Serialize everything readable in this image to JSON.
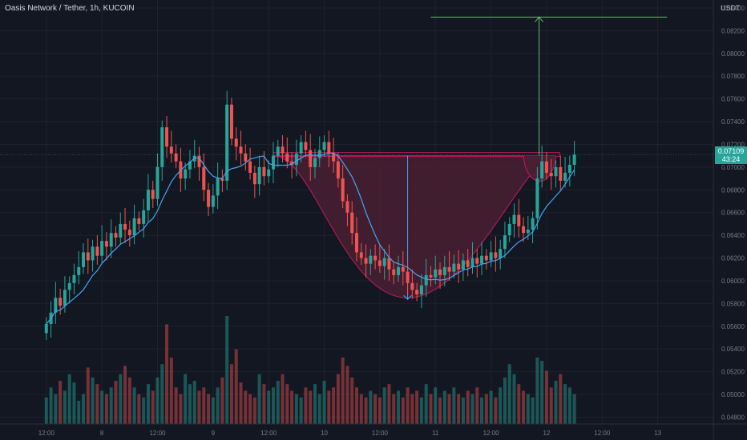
{
  "header": {
    "title": "Oasis Network / Tether, 1h, KUCOIN",
    "currency": "USDT"
  },
  "price_tag": {
    "price": "0.07109",
    "countdown": "43:24"
  },
  "colors": {
    "background": "#131722",
    "up": "#26a69a",
    "down": "#ef5350",
    "ma_line": "#42a5f5",
    "pattern_fill": "#4a1f33",
    "pattern_stroke": "#c2185b",
    "target_line": "#66bb6a",
    "grid": "#1e222d",
    "axis_text": "#787b86"
  },
  "chart_data": {
    "type": "candlestick",
    "symbol": "Oasis Network / Tether",
    "interval": "1h",
    "exchange": "KUCOIN",
    "y_axis": {
      "unit": "USDT",
      "range": [
        0.0474,
        0.0847
      ],
      "ticks": [
        "0.08400",
        "0.08200",
        "0.08000",
        "0.07800",
        "0.07600",
        "0.07400",
        "0.07200",
        "0.07000",
        "0.06800",
        "0.06600",
        "0.06400",
        "0.06200",
        "0.06000",
        "0.05800",
        "0.05600",
        "0.05400",
        "0.05200",
        "0.05000",
        "0.04800"
      ]
    },
    "x_axis": {
      "range_hours": [
        -10,
        144
      ],
      "ticks": [
        {
          "hour": 0,
          "label": "12:00"
        },
        {
          "hour": 12,
          "label": "8"
        },
        {
          "hour": 24,
          "label": "12:00"
        },
        {
          "hour": 36,
          "label": "9"
        },
        {
          "hour": 48,
          "label": "12:00"
        },
        {
          "hour": 60,
          "label": "10"
        },
        {
          "hour": 72,
          "label": "12:00"
        },
        {
          "hour": 84,
          "label": "11"
        },
        {
          "hour": 96,
          "label": "12:00"
        },
        {
          "hour": 108,
          "label": "12"
        },
        {
          "hour": 120,
          "label": "12:00"
        },
        {
          "hour": 132,
          "label": "13"
        }
      ]
    },
    "candle_closes": [
      0.0562,
      0.0572,
      0.0585,
      0.0578,
      0.0592,
      0.0598,
      0.0605,
      0.0612,
      0.0625,
      0.0618,
      0.063,
      0.0622,
      0.0635,
      0.063,
      0.0642,
      0.0638,
      0.065,
      0.0645,
      0.064,
      0.0655,
      0.065,
      0.0662,
      0.068,
      0.0672,
      0.07,
      0.0735,
      0.0718,
      0.0712,
      0.0705,
      0.069,
      0.0698,
      0.0705,
      0.071,
      0.07,
      0.068,
      0.0665,
      0.0675,
      0.069,
      0.0688,
      0.0755,
      0.0725,
      0.0718,
      0.0712,
      0.0705,
      0.0695,
      0.0685,
      0.07,
      0.0692,
      0.0698,
      0.071,
      0.0718,
      0.0712,
      0.0705,
      0.0702,
      0.0712,
      0.0722,
      0.0715,
      0.07,
      0.0708,
      0.0715,
      0.0722,
      0.0712,
      0.0705,
      0.069,
      0.067,
      0.066,
      0.0642,
      0.0625,
      0.062,
      0.0615,
      0.0622,
      0.0618,
      0.0613,
      0.062,
      0.061,
      0.0605,
      0.0612,
      0.0608,
      0.0598,
      0.0592,
      0.0588,
      0.0596,
      0.0605,
      0.0603,
      0.061,
      0.0605,
      0.0612,
      0.0608,
      0.0615,
      0.061,
      0.0618,
      0.0612,
      0.062,
      0.0615,
      0.0622,
      0.0618,
      0.0625,
      0.062,
      0.0628,
      0.064,
      0.065,
      0.0658,
      0.0648,
      0.0642,
      0.0645,
      0.0655,
      0.069,
      0.0705,
      0.0695,
      0.0692,
      0.07,
      0.0688,
      0.0695,
      0.0702,
      0.0711
    ],
    "ma_period": 9,
    "volumes": [
      16,
      22,
      18,
      26,
      20,
      30,
      25,
      14,
      18,
      34,
      28,
      24,
      20,
      18,
      22,
      26,
      30,
      35,
      28,
      22,
      18,
      16,
      24,
      20,
      28,
      36,
      60,
      40,
      22,
      18,
      30,
      24,
      26,
      20,
      22,
      18,
      16,
      22,
      28,
      65,
      36,
      45,
      25,
      20,
      18,
      16,
      30,
      24,
      20,
      22,
      26,
      30,
      24,
      20,
      18,
      16,
      22,
      20,
      24,
      18,
      26,
      20,
      22,
      30,
      40,
      35,
      28,
      22,
      18,
      16,
      20,
      18,
      16,
      22,
      24,
      18,
      20,
      16,
      22,
      18,
      20,
      16,
      24,
      18,
      22,
      16,
      20,
      18,
      22,
      18,
      16,
      20,
      18,
      22,
      16,
      18,
      20,
      16,
      22,
      28,
      36,
      30,
      24,
      20,
      18,
      16,
      40,
      38,
      32,
      22,
      26,
      30,
      24,
      22,
      18
    ],
    "patterns": [
      {
        "type": "cup",
        "start_hour": 49,
        "bottom_hour": 78,
        "end_hour": 110,
        "rim_price": 0.071,
        "low_price": 0.0585
      },
      {
        "type": "handle",
        "start_hour": 103,
        "end_hour": 110,
        "low_price": 0.068
      },
      {
        "type": "target_projection",
        "from_hour": 105,
        "from_price": 0.071,
        "to_price": 0.0832,
        "line_start_hour": 83,
        "line_end_hour": 134
      }
    ],
    "last_price": 0.07109
  }
}
